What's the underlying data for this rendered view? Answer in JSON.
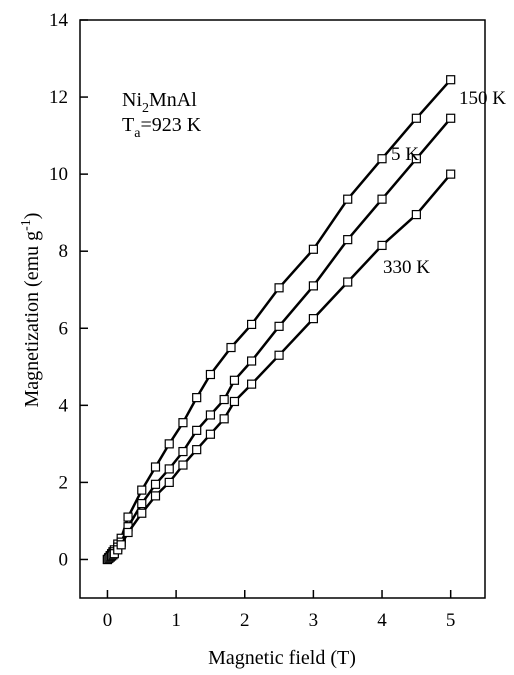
{
  "chart_data": {
    "type": "line",
    "xlabel": "Magnetic field (T)",
    "ylabel_main": "Magnetization (emu g",
    "ylabel_sup": "-1",
    "ylabel_end": ")",
    "xlim": [
      -0.4,
      5.5
    ],
    "ylim": [
      -1,
      14
    ],
    "x_ticks": [
      0,
      1,
      2,
      3,
      4,
      5
    ],
    "y_ticks": [
      0,
      2,
      4,
      6,
      8,
      10,
      12,
      14
    ],
    "x_tick_labels": [
      "0",
      "1",
      "2",
      "3",
      "4",
      "5"
    ],
    "y_tick_labels": [
      "0",
      "2",
      "4",
      "6",
      "8",
      "10",
      "12",
      "14"
    ],
    "grid": false,
    "annotation": {
      "line1": "Ni",
      "line1_sub": "2",
      "line1_end": "MnAl",
      "line2": "T",
      "line2_sub": "a",
      "line2_end": "=923 K"
    },
    "series": [
      {
        "name": "5 K",
        "x": [
          0,
          0.02,
          0.04,
          0.06,
          0.08,
          0.1,
          0.15,
          0.2,
          0.3,
          0.5,
          0.7,
          0.9,
          1.1,
          1.3,
          1.5,
          1.8,
          2.1,
          2.5,
          3.0,
          3.5,
          4.0,
          4.5,
          5.0
        ],
        "y": [
          0,
          0.05,
          0.1,
          0.15,
          0.2,
          0.25,
          0.4,
          0.55,
          1.1,
          1.8,
          2.4,
          3.0,
          3.55,
          4.2,
          4.8,
          5.5,
          6.1,
          7.05,
          8.05,
          9.35,
          10.4,
          11.45,
          12.45
        ]
      },
      {
        "name": "150 K",
        "x": [
          0,
          0.02,
          0.04,
          0.06,
          0.08,
          0.1,
          0.15,
          0.2,
          0.3,
          0.5,
          0.7,
          0.9,
          1.1,
          1.3,
          1.5,
          1.7,
          1.85,
          2.1,
          2.5,
          3.0,
          3.5,
          4.0,
          4.5,
          5.0
        ],
        "y": [
          0,
          0.04,
          0.08,
          0.12,
          0.16,
          0.2,
          0.32,
          0.45,
          0.85,
          1.45,
          1.95,
          2.35,
          2.8,
          3.35,
          3.75,
          4.15,
          4.65,
          5.15,
          6.05,
          7.1,
          8.3,
          9.35,
          10.4,
          11.45
        ]
      },
      {
        "name": "330 K",
        "x": [
          0,
          0.02,
          0.04,
          0.06,
          0.08,
          0.1,
          0.15,
          0.2,
          0.3,
          0.5,
          0.7,
          0.9,
          1.1,
          1.3,
          1.5,
          1.7,
          1.85,
          2.1,
          2.5,
          3.0,
          3.5,
          4.0,
          4.5,
          5.0
        ],
        "y": [
          0,
          0.03,
          0.06,
          0.09,
          0.12,
          0.15,
          0.25,
          0.38,
          0.7,
          1.2,
          1.65,
          2.0,
          2.45,
          2.85,
          3.25,
          3.65,
          4.1,
          4.55,
          5.3,
          6.25,
          7.2,
          8.15,
          8.95,
          10.0
        ]
      }
    ]
  }
}
